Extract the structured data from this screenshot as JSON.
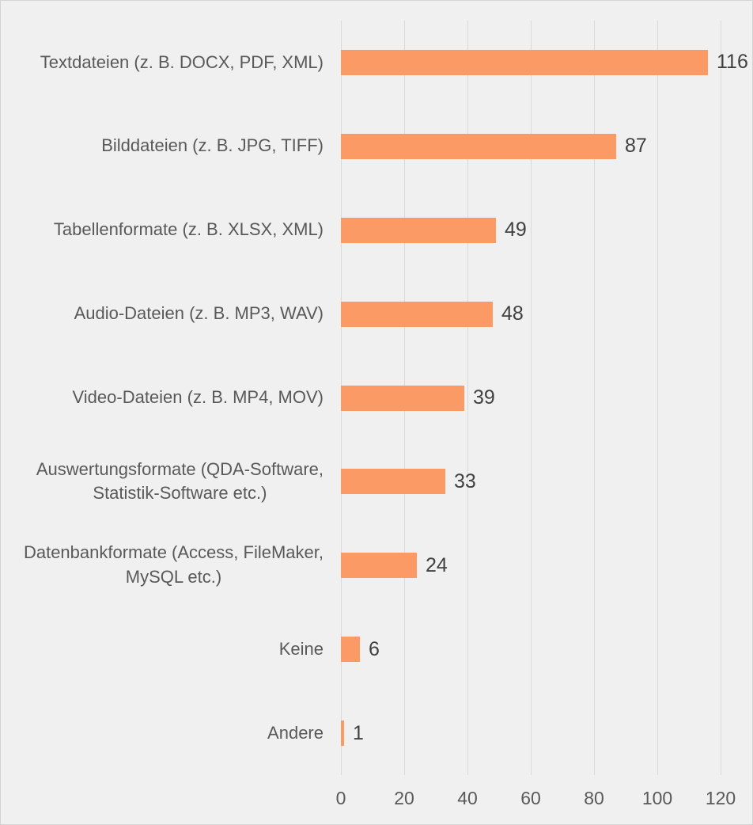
{
  "chart": {
    "background_color": "#F0F0F0",
    "bar_color": "#FC9A66",
    "gridline_color": "#D9D9D9",
    "category_label_color": "#595959",
    "value_label_color": "#404040",
    "border_color": "#D4D4D4"
  },
  "chart_data": {
    "type": "bar",
    "orientation": "horizontal",
    "title": "",
    "xlabel": "",
    "ylabel": "",
    "categories": [
      "Textdateien (z. B. DOCX, PDF, XML)",
      "Bilddateien (z. B. JPG, TIFF)",
      "Tabellenformate (z. B. XLSX, XML)",
      "Audio-Dateien (z. B. MP3, WAV)",
      "Video-Dateien (z. B. MP4, MOV)",
      "Auswertungsformate (QDA-Software,\nStatistik-Software etc.)",
      "Datenbankformate (Access, FileMaker,\nMySQL etc.)",
      "Keine",
      "Andere"
    ],
    "values": [
      116,
      87,
      49,
      48,
      39,
      33,
      24,
      6,
      1
    ],
    "x_ticks": [
      0,
      20,
      40,
      60,
      80,
      100,
      120
    ],
    "xlim": [
      0,
      130
    ],
    "grid": true,
    "legend": false,
    "value_labels_shown": true
  }
}
